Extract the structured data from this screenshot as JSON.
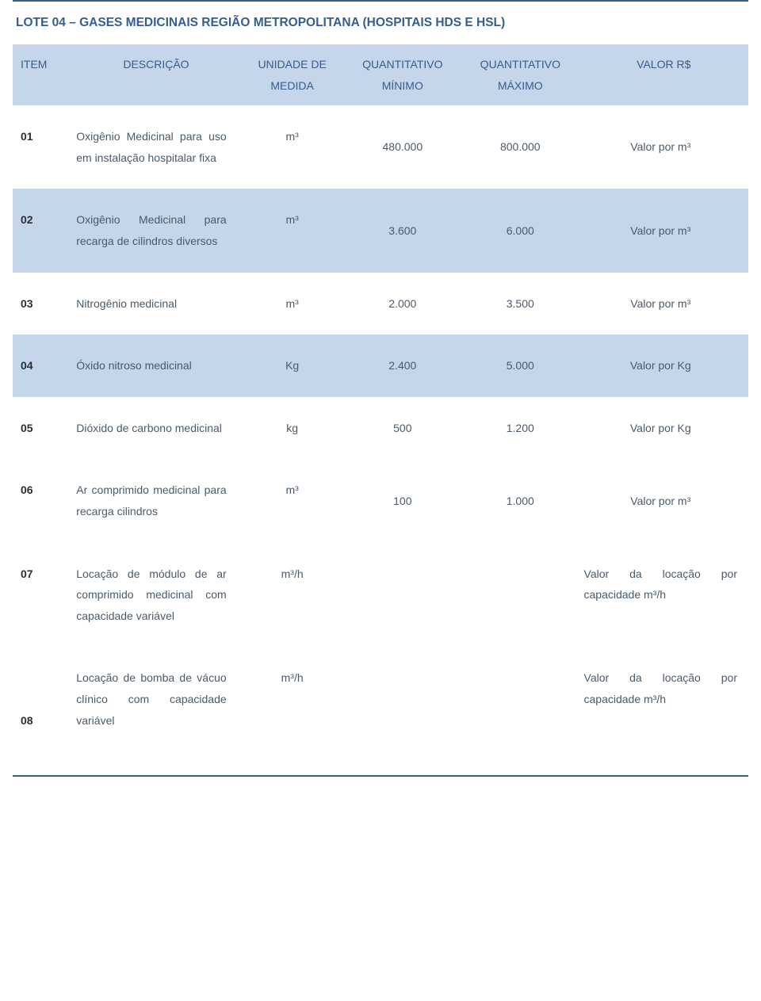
{
  "title": "LOTE 04 – GASES MEDICINAIS REGIÃO METROPOLITANA (HOSPITAIS HDS E HSL)",
  "colors": {
    "accent": "#355d8e",
    "header_bg": "#c5d5ea",
    "row_shaded_bg": "#c5d5ea",
    "row_plain_bg": "#ffffff",
    "body_text": "#4a5a6a",
    "item_text": "#2a2f36"
  },
  "typography": {
    "font_family": "Verdana",
    "title_fontsize_pt": 12,
    "body_fontsize_pt": 10.5,
    "line_height": 1.9
  },
  "columns": [
    {
      "key": "item",
      "label": "ITEM",
      "width_pct": 8,
      "align": "left"
    },
    {
      "key": "desc",
      "label": "DESCRIÇÃO",
      "width_pct": 23,
      "align": "center"
    },
    {
      "key": "unit",
      "label": "UNIDADE DE MEDIDA",
      "width_pct": 14,
      "align": "center"
    },
    {
      "key": "min",
      "label": "QUANTITATIVO MÍNIMO",
      "width_pct": 16,
      "align": "center"
    },
    {
      "key": "max",
      "label": "QUANTITATIVO MÁXIMO",
      "width_pct": 16,
      "align": "center"
    },
    {
      "key": "val",
      "label": "VALOR R$",
      "width_pct": 23,
      "align": "center"
    }
  ],
  "header": {
    "item": "ITEM",
    "desc": "DESCRIÇÃO",
    "unit_l1": "UNIDADE DE",
    "unit_l2": "MEDIDA",
    "min_l1": "QUANTITATIVO",
    "min_l2": "MÍNIMO",
    "max_l1": "QUANTITATIVO",
    "max_l2": "MÁXIMO",
    "val": "VALOR R$"
  },
  "rows": [
    {
      "item": "01",
      "desc": "Oxigênio Medicinal para uso em instalação hospitalar fixa",
      "unit": "m³",
      "min": "480.000",
      "max": "800.000",
      "val": "Valor por m³",
      "shaded": false,
      "val_justify": false,
      "item_valign": "top"
    },
    {
      "item": "02",
      "desc": "Oxigênio Medicinal para recarga de cilindros diversos",
      "unit": "m³",
      "min": "3.600",
      "max": "6.000",
      "val": "Valor por m³",
      "shaded": true,
      "val_justify": false,
      "item_valign": "top"
    },
    {
      "item": "03",
      "desc": "Nitrogênio medicinal",
      "unit": "m³",
      "min": "2.000",
      "max": "3.500",
      "val": "Valor por m³",
      "shaded": false,
      "val_justify": false,
      "item_valign": "top"
    },
    {
      "item": "04",
      "desc": "Óxido nitroso medicinal",
      "unit": "Kg",
      "min": "2.400",
      "max": "5.000",
      "val": "Valor por Kg",
      "shaded": true,
      "val_justify": false,
      "item_valign": "top"
    },
    {
      "item": "05",
      "desc": "Dióxido de carbono medicinal",
      "unit": "kg",
      "min": "500",
      "max": "1.200",
      "val": "Valor por Kg",
      "shaded": false,
      "val_justify": false,
      "item_valign": "top"
    },
    {
      "item": "06",
      "desc": "Ar comprimido medicinal para recarga cilindros",
      "unit": "m³",
      "min": "100",
      "max": "1.000",
      "val": "Valor por m³",
      "shaded": false,
      "val_justify": false,
      "item_valign": "top"
    },
    {
      "item": "07",
      "desc": "Locação de módulo de ar comprimido medicinal com capacidade variável",
      "unit": "m³/h",
      "min": "",
      "max": "",
      "val": "Valor da locação por capacidade m³/h",
      "shaded": false,
      "val_justify": true,
      "item_valign": "top"
    },
    {
      "item": "08",
      "desc": "Locação de bomba de vácuo clínico com capacidade variável",
      "unit": "m³/h",
      "min": "",
      "max": "",
      "val": "Valor da locação por capacidade m³/h",
      "shaded": false,
      "val_justify": true,
      "item_valign": "bottom"
    }
  ]
}
